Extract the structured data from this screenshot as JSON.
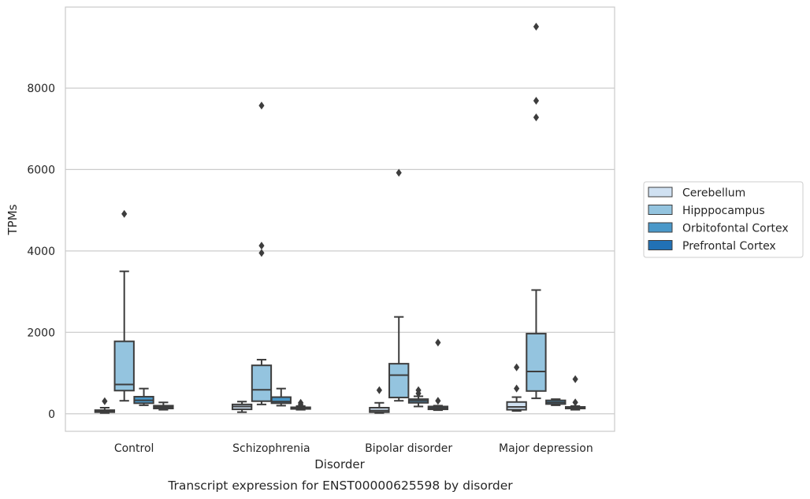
{
  "chart_data": {
    "type": "box",
    "title": "",
    "caption": "Transcript expression for ENST00000625598 by disorder",
    "xlabel": "Disorder",
    "ylabel": "TPMs",
    "categories": [
      "Control",
      "Schizophrenia",
      "Bipolar disorder",
      "Major depression"
    ],
    "ylim": [
      -430,
      9990
    ],
    "yticks": [
      0,
      2000,
      4000,
      6000,
      8000
    ],
    "ytick_labels": [
      "0",
      "2000",
      "4000",
      "6000",
      "8000"
    ],
    "grid": "horizontal",
    "legend_position": "right",
    "series": [
      {
        "name": "Cerebellum",
        "color": "#d0e1f2",
        "boxes": [
          {
            "whislo": 20,
            "q1": 40,
            "med": 60,
            "q3": 90,
            "whishi": 150,
            "fliers": [
              310
            ]
          },
          {
            "whislo": 40,
            "q1": 110,
            "med": 180,
            "q3": 230,
            "whishi": 300,
            "fliers": []
          },
          {
            "whislo": 20,
            "q1": 40,
            "med": 80,
            "q3": 150,
            "whishi": 270,
            "fliers": [
              580
            ]
          },
          {
            "whislo": 70,
            "q1": 100,
            "med": 170,
            "q3": 290,
            "whishi": 410,
            "fliers": [
              620,
              1140
            ]
          }
        ]
      },
      {
        "name": "Hipppocampus",
        "color": "#94c4df",
        "boxes": [
          {
            "whislo": 320,
            "q1": 570,
            "med": 720,
            "q3": 1780,
            "whishi": 3500,
            "fliers": [
              4910
            ]
          },
          {
            "whislo": 230,
            "q1": 310,
            "med": 590,
            "q3": 1190,
            "whishi": 1330,
            "fliers": [
              3950,
              4130,
              7570
            ]
          },
          {
            "whislo": 320,
            "q1": 400,
            "med": 950,
            "q3": 1230,
            "whishi": 2380,
            "fliers": [
              5920
            ]
          },
          {
            "whislo": 380,
            "q1": 560,
            "med": 1040,
            "q3": 1970,
            "whishi": 3040,
            "fliers": [
              7280,
              7690,
              9510
            ]
          }
        ]
      },
      {
        "name": "Orbitofontal Cortex",
        "color": "#4a98c9",
        "boxes": [
          {
            "whislo": 210,
            "q1": 260,
            "med": 330,
            "q3": 420,
            "whishi": 620,
            "fliers": []
          },
          {
            "whislo": 200,
            "q1": 260,
            "med": 300,
            "q3": 410,
            "whishi": 620,
            "fliers": []
          },
          {
            "whislo": 180,
            "q1": 270,
            "med": 320,
            "q3": 360,
            "whishi": 430,
            "fliers": [
              500,
              580
            ]
          },
          {
            "whislo": 210,
            "q1": 240,
            "med": 280,
            "q3": 330,
            "whishi": 360,
            "fliers": []
          }
        ]
      },
      {
        "name": "Prefrontal Cortex",
        "color": "#2171b5",
        "boxes": [
          {
            "whislo": 100,
            "q1": 130,
            "med": 170,
            "q3": 200,
            "whishi": 280,
            "fliers": []
          },
          {
            "whislo": 100,
            "q1": 120,
            "med": 140,
            "q3": 160,
            "whishi": 190,
            "fliers": [
              230,
              270
            ]
          },
          {
            "whislo": 90,
            "q1": 110,
            "med": 140,
            "q3": 180,
            "whishi": 200,
            "fliers": [
              320,
              1750
            ]
          },
          {
            "whislo": 100,
            "q1": 130,
            "med": 150,
            "q3": 170,
            "whishi": 190,
            "fliers": [
              280,
              850
            ]
          }
        ]
      }
    ]
  }
}
